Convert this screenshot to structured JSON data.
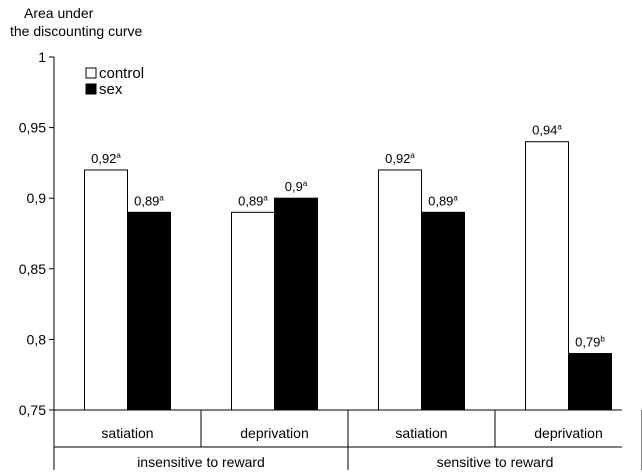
{
  "chart_data": {
    "type": "bar",
    "ylabel_lines": [
      "Area under",
      "the discounting curve"
    ],
    "ylim": [
      0.75,
      1
    ],
    "yticks": [
      {
        "value": 0.75,
        "label": "0,75"
      },
      {
        "value": 0.8,
        "label": "0,8"
      },
      {
        "value": 0.85,
        "label": "0,85"
      },
      {
        "value": 0.9,
        "label": "0,9"
      },
      {
        "value": 0.95,
        "label": "0,95"
      },
      {
        "value": 1,
        "label": "1"
      }
    ],
    "groups": [
      "insensitive to reward",
      "sensitive to reward"
    ],
    "categories": [
      "satiation",
      "deprivation",
      "satiation",
      "deprivation"
    ],
    "series": [
      {
        "name": "control",
        "color": "#ffffff",
        "values": [
          0.92,
          0.89,
          0.92,
          0.94
        ],
        "labels": [
          "0,92",
          "0,89",
          "0,92",
          "0,94"
        ],
        "superscripts": [
          "a",
          "a",
          "a",
          "a"
        ]
      },
      {
        "name": "sex",
        "color": "#000000",
        "values": [
          0.89,
          0.9,
          0.89,
          0.79
        ],
        "labels": [
          "0,89",
          "0,9",
          "0,89",
          "0,79"
        ],
        "superscripts": [
          "a",
          "a",
          "a",
          "b"
        ]
      }
    ],
    "legend_position": "top-left",
    "grid": false
  }
}
